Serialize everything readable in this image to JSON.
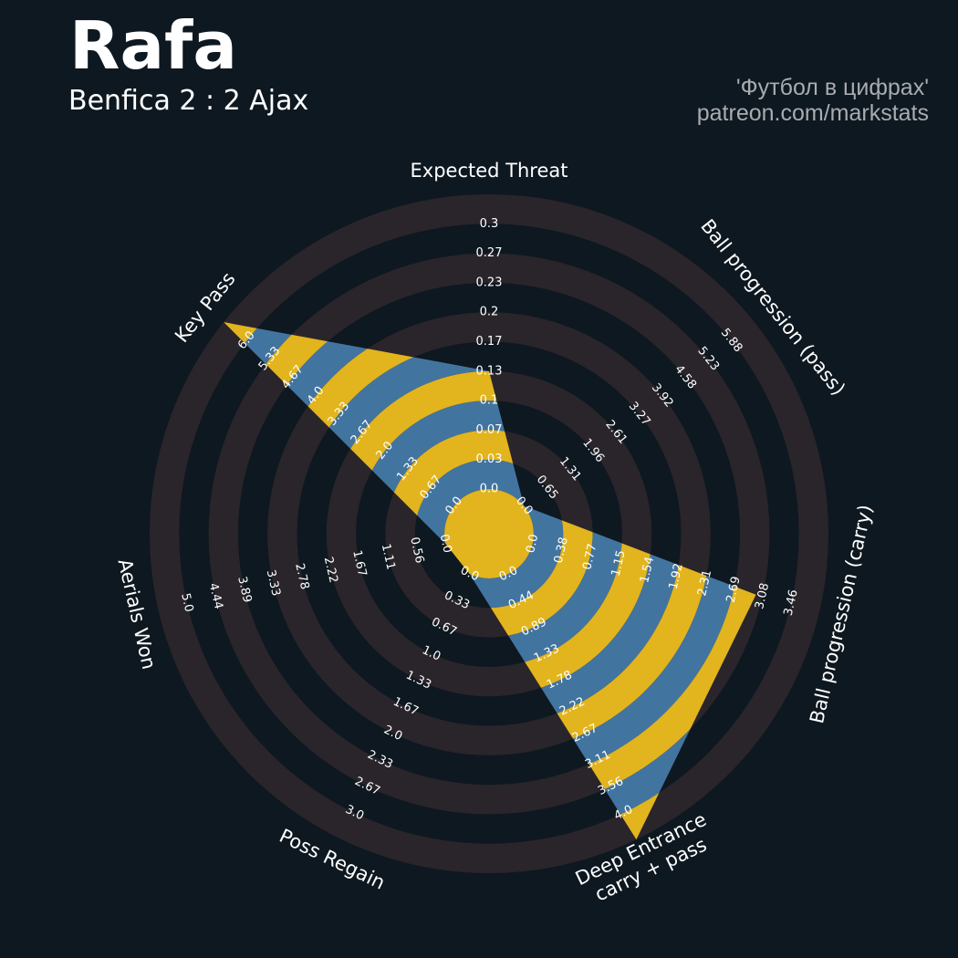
{
  "header": {
    "title": "Rafa",
    "subtitle": "Benfica 2 : 2 Ajax",
    "credit_line1": "'Футбол в цифрах'",
    "credit_line2": "patreon.com/markstats"
  },
  "colors": {
    "background": "#0e1820",
    "ring_dark": "#2a252b",
    "radar_blue": "#4274a0",
    "radar_gold": "#e2b41e",
    "text": "#ffffff",
    "credit_text": "#a8acb0"
  },
  "chart_data": {
    "type": "radar",
    "title": "Rafa",
    "subtitle": "Benfica 2 : 2 Ajax",
    "ring_count": 10,
    "axes": [
      {
        "label": "Expected Threat",
        "label_lines": [
          "Expected Threat"
        ],
        "min": 0.0,
        "max": 0.3,
        "value": 0.12,
        "ticks": [
          "0.0",
          "0.03",
          "0.07",
          "0.1",
          "0.13",
          "0.17",
          "0.2",
          "0.23",
          "0.27",
          "0.3"
        ]
      },
      {
        "label": "Ball progression (pass)",
        "label_lines": [
          "Ball progression (pass)"
        ],
        "min": 0.0,
        "max": 5.88,
        "value": 0.0,
        "ticks": [
          "0.0",
          "0.65",
          "1.31",
          "1.96",
          "2.61",
          "3.27",
          "3.92",
          "4.58",
          "5.23",
          "5.88"
        ]
      },
      {
        "label": "Ball progression (carry)",
        "label_lines": [
          "Ball progression (carry)"
        ],
        "min": 0.0,
        "max": 3.46,
        "value": 2.69,
        "ticks": [
          "0.0",
          "0.38",
          "0.77",
          "1.15",
          "1.54",
          "1.92",
          "2.31",
          "2.69",
          "3.08",
          "3.46"
        ]
      },
      {
        "label": "Deep Entrance carry + pass",
        "label_lines": [
          "Deep Entrance",
          "carry + pass"
        ],
        "min": 0.0,
        "max": 4.0,
        "value": 4.0,
        "ticks": [
          "0.0",
          "0.44",
          "0.89",
          "1.33",
          "1.78",
          "2.22",
          "2.67",
          "3.11",
          "3.56",
          "4.0"
        ]
      },
      {
        "label": "Poss Regain",
        "label_lines": [
          "Poss Regain"
        ],
        "min": 0.0,
        "max": 3.0,
        "value": 0.0,
        "ticks": [
          "0.0",
          "0.33",
          "0.67",
          "1.0",
          "1.33",
          "1.67",
          "2.0",
          "2.33",
          "2.67",
          "3.0"
        ]
      },
      {
        "label": "Aerials Won",
        "label_lines": [
          "Aerials Won"
        ],
        "min": 0.0,
        "max": 5.0,
        "value": 0.0,
        "ticks": [
          "0.0",
          "0.56",
          "1.11",
          "1.67",
          "2.22",
          "2.78",
          "3.33",
          "3.89",
          "4.44",
          "5.0"
        ]
      },
      {
        "label": "Key Pass",
        "label_lines": [
          "Key Pass"
        ],
        "min": 0.0,
        "max": 6.0,
        "value": 6.0,
        "ticks": [
          "0.0",
          "0.67",
          "1.33",
          "2.0",
          "2.67",
          "3.33",
          "4.0",
          "4.67",
          "5.33",
          "6.0"
        ]
      }
    ]
  }
}
